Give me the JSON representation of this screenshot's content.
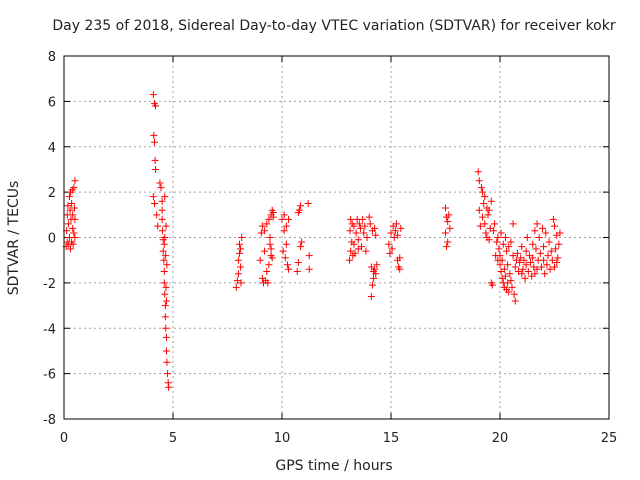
{
  "chart_data": {
    "type": "scatter",
    "title": "Day 235 of 2018, Sidereal Day-to-day VTEC variation (SDTVAR) for receiver kokr",
    "xlabel": "GPS time / hours",
    "ylabel": "SDTVAR / TECUs",
    "xlim": [
      0,
      25
    ],
    "ylim": [
      -8,
      8
    ],
    "xticks": [
      "0",
      "5",
      "10",
      "15",
      "20",
      "25"
    ],
    "yticks": [
      "-8",
      "-6",
      "-4",
      "-2",
      "0",
      "2",
      "4",
      "6",
      "8"
    ],
    "grid": true,
    "marker": "+",
    "color": "#ff0000",
    "series": [
      {
        "name": "SDTVAR",
        "points": [
          [
            0.1,
            -0.4
          ],
          [
            0.12,
            0.3
          ],
          [
            0.15,
            1.0
          ],
          [
            0.15,
            -0.2
          ],
          [
            0.18,
            1.4
          ],
          [
            0.2,
            0.6
          ],
          [
            0.22,
            -0.3
          ],
          [
            0.25,
            1.8
          ],
          [
            0.25,
            0.0
          ],
          [
            0.28,
            1.2
          ],
          [
            0.3,
            -0.5
          ],
          [
            0.3,
            2.0
          ],
          [
            0.32,
            0.8
          ],
          [
            0.35,
            1.5
          ],
          [
            0.35,
            -0.2
          ],
          [
            0.38,
            2.1
          ],
          [
            0.4,
            0.4
          ],
          [
            0.4,
            1.0
          ],
          [
            0.42,
            -0.3
          ],
          [
            0.45,
            2.2
          ],
          [
            0.45,
            0.2
          ],
          [
            0.48,
            1.3
          ],
          [
            0.5,
            0.0
          ],
          [
            0.5,
            2.5
          ],
          [
            0.5,
            0.8
          ],
          [
            4.1,
            6.3
          ],
          [
            4.15,
            5.9
          ],
          [
            4.2,
            5.8
          ],
          [
            4.12,
            4.5
          ],
          [
            4.15,
            4.2
          ],
          [
            4.18,
            3.4
          ],
          [
            4.2,
            3.0
          ],
          [
            4.1,
            1.8
          ],
          [
            4.15,
            1.5
          ],
          [
            4.25,
            1.0
          ],
          [
            4.3,
            0.5
          ],
          [
            4.4,
            2.4
          ],
          [
            4.45,
            2.2
          ],
          [
            4.5,
            1.6
          ],
          [
            4.5,
            1.2
          ],
          [
            4.5,
            0.8
          ],
          [
            4.52,
            0.3
          ],
          [
            4.55,
            -0.1
          ],
          [
            4.55,
            -0.6
          ],
          [
            4.58,
            -1.0
          ],
          [
            4.6,
            -1.5
          ],
          [
            4.6,
            -2.0
          ],
          [
            4.62,
            -2.5
          ],
          [
            4.62,
            1.8
          ],
          [
            4.65,
            -3.0
          ],
          [
            4.65,
            -3.5
          ],
          [
            4.67,
            -4.0
          ],
          [
            4.68,
            0.5
          ],
          [
            4.7,
            -4.4
          ],
          [
            4.7,
            -5.0
          ],
          [
            4.72,
            -5.5
          ],
          [
            4.72,
            -1.2
          ],
          [
            4.75,
            -6.0
          ],
          [
            4.78,
            -6.4
          ],
          [
            4.8,
            -6.6
          ],
          [
            4.6,
            -0.3
          ],
          [
            4.62,
            0.0
          ],
          [
            4.66,
            -0.8
          ],
          [
            4.7,
            -2.8
          ],
          [
            4.68,
            -2.2
          ],
          [
            7.9,
            -2.2
          ],
          [
            7.95,
            -1.9
          ],
          [
            8.0,
            -1.6
          ],
          [
            8.0,
            -1.0
          ],
          [
            8.05,
            -0.7
          ],
          [
            8.05,
            -0.3
          ],
          [
            8.1,
            -0.5
          ],
          [
            8.1,
            -1.3
          ],
          [
            8.15,
            0.0
          ],
          [
            8.12,
            -2.0
          ],
          [
            9.0,
            -1.0
          ],
          [
            9.05,
            0.2
          ],
          [
            9.1,
            -1.8
          ],
          [
            9.1,
            0.5
          ],
          [
            9.15,
            -2.0
          ],
          [
            9.2,
            0.3
          ],
          [
            9.2,
            -0.6
          ],
          [
            9.25,
            -1.9
          ],
          [
            9.3,
            0.6
          ],
          [
            9.3,
            -1.5
          ],
          [
            9.35,
            -2.0
          ],
          [
            9.4,
            0.8
          ],
          [
            9.4,
            -1.2
          ],
          [
            9.45,
            -0.3
          ],
          [
            9.5,
            1.0
          ],
          [
            9.5,
            -0.8
          ],
          [
            9.55,
            -0.9
          ],
          [
            9.55,
            1.2
          ],
          [
            9.6,
            1.1
          ],
          [
            9.6,
            0.9
          ],
          [
            9.5,
            -0.5
          ],
          [
            9.45,
            0.0
          ],
          [
            10.0,
            0.8
          ],
          [
            10.05,
            -0.6
          ],
          [
            10.1,
            1.0
          ],
          [
            10.15,
            -0.9
          ],
          [
            10.2,
            0.5
          ],
          [
            10.25,
            -1.2
          ],
          [
            10.3,
            0.8
          ],
          [
            10.3,
            -1.4
          ],
          [
            10.2,
            -0.3
          ],
          [
            10.1,
            0.3
          ],
          [
            10.7,
            -1.5
          ],
          [
            10.75,
            -1.1
          ],
          [
            10.8,
            1.2
          ],
          [
            10.85,
            1.4
          ],
          [
            10.9,
            -0.2
          ],
          [
            10.85,
            -0.4
          ],
          [
            10.75,
            1.1
          ],
          [
            11.2,
            1.5
          ],
          [
            11.25,
            -0.8
          ],
          [
            11.25,
            -1.4
          ],
          [
            13.1,
            -1.0
          ],
          [
            13.12,
            0.3
          ],
          [
            13.15,
            0.8
          ],
          [
            13.15,
            -0.6
          ],
          [
            13.2,
            -0.2
          ],
          [
            13.22,
            0.6
          ],
          [
            13.25,
            -0.8
          ],
          [
            13.3,
            0.5
          ],
          [
            13.3,
            -0.3
          ],
          [
            13.35,
            -0.7
          ],
          [
            13.4,
            0.2
          ],
          [
            13.45,
            0.8
          ],
          [
            13.5,
            -0.1
          ],
          [
            13.5,
            -0.5
          ],
          [
            13.55,
            0.6
          ],
          [
            13.6,
            0.4
          ],
          [
            13.65,
            -0.4
          ],
          [
            13.7,
            0.8
          ],
          [
            13.75,
            0.2
          ],
          [
            13.8,
            0.5
          ],
          [
            13.85,
            -0.6
          ],
          [
            13.9,
            0.0
          ],
          [
            14.0,
            0.9
          ],
          [
            14.05,
            0.6
          ],
          [
            14.1,
            -1.3
          ],
          [
            14.1,
            -2.6
          ],
          [
            14.15,
            -2.1
          ],
          [
            14.15,
            0.3
          ],
          [
            14.2,
            -1.5
          ],
          [
            14.2,
            -1.8
          ],
          [
            14.25,
            0.4
          ],
          [
            14.25,
            -1.4
          ],
          [
            14.3,
            0.1
          ],
          [
            14.3,
            -1.6
          ],
          [
            14.35,
            -1.2
          ],
          [
            14.9,
            -0.3
          ],
          [
            14.95,
            -0.7
          ],
          [
            15.0,
            0.2
          ],
          [
            15.05,
            -0.5
          ],
          [
            15.1,
            0.5
          ],
          [
            15.15,
            0.0
          ],
          [
            15.2,
            0.3
          ],
          [
            15.25,
            0.6
          ],
          [
            15.3,
            -1.0
          ],
          [
            15.3,
            0.1
          ],
          [
            15.35,
            -1.3
          ],
          [
            15.4,
            -1.4
          ],
          [
            15.45,
            0.4
          ],
          [
            15.4,
            -0.9
          ],
          [
            17.5,
            1.3
          ],
          [
            17.5,
            0.2
          ],
          [
            17.55,
            -0.4
          ],
          [
            17.6,
            0.7
          ],
          [
            17.65,
            1.0
          ],
          [
            17.6,
            -0.2
          ],
          [
            17.7,
            0.4
          ],
          [
            17.55,
            0.9
          ],
          [
            19.0,
            2.9
          ],
          [
            19.05,
            2.5
          ],
          [
            19.05,
            1.2
          ],
          [
            19.1,
            0.5
          ],
          [
            19.15,
            2.2
          ],
          [
            19.2,
            0.9
          ],
          [
            19.2,
            2.0
          ],
          [
            19.25,
            1.5
          ],
          [
            19.3,
            1.8
          ],
          [
            19.3,
            0.6
          ],
          [
            19.35,
            0.2
          ],
          [
            19.4,
            1.3
          ],
          [
            19.4,
            0.0
          ],
          [
            19.45,
            1.0
          ],
          [
            19.5,
            -0.1
          ],
          [
            19.5,
            1.2
          ],
          [
            19.55,
            0.4
          ],
          [
            19.6,
            1.6
          ],
          [
            19.6,
            -2.0
          ],
          [
            19.65,
            -2.1
          ],
          [
            19.7,
            0.3
          ],
          [
            19.75,
            0.6
          ],
          [
            19.8,
            -0.8
          ],
          [
            19.85,
            -0.2
          ],
          [
            19.9,
            0.0
          ],
          [
            19.9,
            -1.0
          ],
          [
            19.95,
            -0.5
          ],
          [
            20.0,
            -1.2
          ],
          [
            20.0,
            -0.8
          ],
          [
            20.05,
            -1.5
          ],
          [
            20.05,
            0.2
          ],
          [
            20.1,
            -1.8
          ],
          [
            20.1,
            -1.0
          ],
          [
            20.15,
            -2.0
          ],
          [
            20.15,
            -0.3
          ],
          [
            20.2,
            -2.2
          ],
          [
            20.2,
            -1.4
          ],
          [
            20.25,
            -1.7
          ],
          [
            20.25,
            0.0
          ],
          [
            20.3,
            -2.3
          ],
          [
            20.3,
            -0.6
          ],
          [
            20.35,
            -2.0
          ],
          [
            20.35,
            -1.2
          ],
          [
            20.4,
            -2.4
          ],
          [
            20.4,
            -0.4
          ],
          [
            20.45,
            -1.6
          ],
          [
            20.5,
            -0.2
          ],
          [
            20.5,
            -1.9
          ],
          [
            20.55,
            -2.2
          ],
          [
            20.6,
            -0.8
          ],
          [
            20.6,
            0.6
          ],
          [
            20.65,
            -2.5
          ],
          [
            20.7,
            -2.8
          ],
          [
            20.7,
            -1.3
          ],
          [
            20.75,
            -1.0
          ],
          [
            20.8,
            -0.7
          ],
          [
            20.85,
            -1.5
          ],
          [
            20.9,
            -1.1
          ],
          [
            20.95,
            -0.9
          ],
          [
            21.0,
            -1.6
          ],
          [
            21.0,
            -0.4
          ],
          [
            21.05,
            -1.4
          ],
          [
            21.1,
            -1.0
          ],
          [
            21.15,
            -1.8
          ],
          [
            21.2,
            -0.6
          ],
          [
            21.2,
            -1.2
          ],
          [
            21.25,
            0.0
          ],
          [
            21.3,
            -1.5
          ],
          [
            21.35,
            -0.8
          ],
          [
            21.4,
            -1.1
          ],
          [
            21.45,
            -1.7
          ],
          [
            21.5,
            -0.3
          ],
          [
            21.5,
            -0.9
          ],
          [
            21.55,
            -1.3
          ],
          [
            21.6,
            0.3
          ],
          [
            21.6,
            -1.6
          ],
          [
            21.65,
            -0.5
          ],
          [
            21.7,
            0.6
          ],
          [
            21.7,
            -1.4
          ],
          [
            21.75,
            -1.0
          ],
          [
            21.8,
            0.0
          ],
          [
            21.85,
            -0.7
          ],
          [
            21.9,
            -1.3
          ],
          [
            21.95,
            0.4
          ],
          [
            22.0,
            -1.0
          ],
          [
            22.0,
            -0.4
          ],
          [
            22.05,
            -1.6
          ],
          [
            22.1,
            0.2
          ],
          [
            22.15,
            -1.2
          ],
          [
            22.2,
            -0.8
          ],
          [
            22.25,
            -0.2
          ],
          [
            22.3,
            -1.4
          ],
          [
            22.35,
            -0.6
          ],
          [
            22.4,
            -1.0
          ],
          [
            22.45,
            0.8
          ],
          [
            22.5,
            -1.3
          ],
          [
            22.5,
            0.5
          ],
          [
            22.55,
            -0.5
          ],
          [
            22.6,
            -1.1
          ],
          [
            22.6,
            0.1
          ],
          [
            22.65,
            -0.9
          ],
          [
            22.7,
            -0.3
          ],
          [
            22.75,
            0.2
          ]
        ]
      }
    ]
  }
}
